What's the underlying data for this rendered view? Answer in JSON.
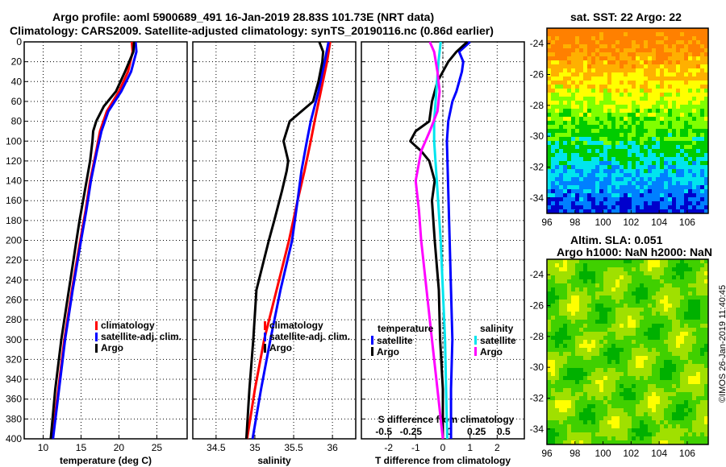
{
  "titles": {
    "line1": "Argo profile: aoml 5900689_491 16-Jan-2019 28.83S 101.73E (NRT data)",
    "line2": "Climatology: CARS2009. Satellite-adjusted climatology: synTS_20190116.nc (0.86d earlier)",
    "map1": "sat. SST: 22 Argo: 22",
    "map2_a": "Altim. SLA: 0.051",
    "map2_b": "Argo h1000: NaN h2000: NaN"
  },
  "stamp": "©IMOS 26-Jan-2019 11:40:45",
  "colors": {
    "climatology": "#ff0000",
    "satellite": "#0000ff",
    "argo": "#000000",
    "salinity_sat": "#00e5ee",
    "salinity_argo": "#ff00ff"
  },
  "chart_data": [
    {
      "type": "line",
      "name": "temperature",
      "xlabel": "temperature (deg C)",
      "ylabel": "depth",
      "xlim": [
        7.5,
        29
      ],
      "ylim": [
        400,
        0
      ],
      "xticks": [
        10,
        15,
        20,
        25
      ],
      "yticks": [
        0,
        20,
        40,
        60,
        80,
        100,
        120,
        140,
        160,
        180,
        200,
        220,
        240,
        260,
        280,
        300,
        320,
        340,
        360,
        380,
        400
      ],
      "grid": true,
      "legend": [
        "climatology",
        "satellite-adj. clim.",
        "Argo"
      ],
      "series": [
        {
          "name": "climatology",
          "color": "#ff0000",
          "depth": [
            0,
            10,
            30,
            50,
            70,
            90,
            110,
            140,
            170,
            200,
            250,
            300,
            350,
            400
          ],
          "values": [
            21.7,
            21.8,
            21.2,
            20.0,
            18.4,
            17.5,
            17.0,
            16.2,
            15.6,
            14.9,
            13.8,
            12.8,
            12.0,
            11.2
          ]
        },
        {
          "name": "satellite-adj. clim.",
          "color": "#0000ff",
          "depth": [
            0,
            10,
            30,
            50,
            70,
            90,
            110,
            140,
            170,
            200,
            250,
            300,
            350,
            400
          ],
          "values": [
            22.2,
            22.3,
            21.6,
            20.3,
            18.6,
            17.7,
            17.1,
            16.3,
            15.7,
            15.0,
            13.9,
            12.9,
            12.1,
            11.3
          ]
        },
        {
          "name": "Argo",
          "color": "#000000",
          "depth": [
            0,
            10,
            30,
            50,
            65,
            80,
            90,
            100,
            120,
            150,
            180,
            200,
            250,
            300,
            350,
            400
          ],
          "values": [
            22.0,
            21.9,
            20.8,
            19.6,
            18.0,
            17.0,
            16.6,
            16.5,
            16.2,
            15.5,
            14.8,
            14.4,
            13.4,
            12.4,
            11.6,
            11.0
          ]
        }
      ]
    },
    {
      "type": "line",
      "name": "salinity",
      "xlabel": "salinity",
      "xlim": [
        34.2,
        36.3
      ],
      "ylim": [
        400,
        0
      ],
      "xticks": [
        34.5,
        35,
        35.5,
        36
      ],
      "grid": true,
      "legend": [
        "climatology",
        "satellite-adj. clim.",
        "Argo"
      ],
      "series": [
        {
          "name": "climatology",
          "color": "#ff0000",
          "depth": [
            0,
            20,
            50,
            80,
            100,
            130,
            160,
            200,
            250,
            300,
            350,
            400
          ],
          "values": [
            35.97,
            35.93,
            35.85,
            35.77,
            35.72,
            35.64,
            35.55,
            35.44,
            35.28,
            35.12,
            35.0,
            34.9
          ]
        },
        {
          "name": "satellite-adj. clim.",
          "color": "#0000ff",
          "depth": [
            0,
            20,
            50,
            80,
            100,
            130,
            160,
            200,
            250,
            300,
            350,
            400
          ],
          "values": [
            35.95,
            35.9,
            35.82,
            35.72,
            35.67,
            35.6,
            35.55,
            35.48,
            35.33,
            35.2,
            35.08,
            34.97
          ]
        },
        {
          "name": "Argo",
          "color": "#000000",
          "depth": [
            0,
            10,
            20,
            40,
            60,
            80,
            100,
            120,
            130,
            150,
            180,
            200,
            250,
            300,
            350,
            400
          ],
          "values": [
            35.83,
            35.88,
            35.87,
            35.82,
            35.75,
            35.45,
            35.37,
            35.43,
            35.41,
            35.35,
            35.25,
            35.18,
            35.02,
            34.98,
            34.93,
            34.89
          ]
        }
      ]
    },
    {
      "type": "line",
      "name": "difference",
      "xlabel": "T difference from climatology",
      "xlabel2": "S difference from climatology",
      "xlim": [
        -3,
        3
      ],
      "ylim": [
        400,
        0
      ],
      "xticks": [
        -2,
        -1,
        0,
        1,
        2
      ],
      "xticks2": [
        -0.5,
        -0.25,
        0,
        0.25,
        0.5
      ],
      "xticklabels2": [
        "-0.5",
        "-0.25",
        "0",
        "0.25",
        "0.5"
      ],
      "grid": true,
      "legend_temperature": {
        "title": "temperature",
        "items": [
          "satellite",
          "Argo"
        ]
      },
      "legend_salinity": {
        "title": "salinity",
        "items": [
          "satellite",
          "Argo"
        ]
      },
      "series": [
        {
          "name": "temperature satellite",
          "color": "#0000ff",
          "depth": [
            0,
            10,
            20,
            30,
            40,
            50,
            60,
            80,
            100,
            150,
            200,
            250,
            300,
            350,
            400
          ],
          "values": [
            1.0,
            0.6,
            0.75,
            0.7,
            0.6,
            0.5,
            0.35,
            0.2,
            0.15,
            0.2,
            0.25,
            0.3,
            0.35,
            0.3,
            0.3
          ]
        },
        {
          "name": "temperature Argo",
          "color": "#000000",
          "depth": [
            0,
            10,
            20,
            40,
            60,
            80,
            90,
            100,
            110,
            120,
            140,
            160,
            200,
            250,
            300,
            350,
            400
          ],
          "values": [
            0.9,
            0.5,
            0.2,
            -0.2,
            -0.4,
            -0.5,
            -1.0,
            -1.2,
            -0.8,
            -0.5,
            -0.3,
            -0.4,
            -0.3,
            -0.15,
            -0.1,
            0.0,
            0.0
          ]
        },
        {
          "name": "salinity satellite",
          "color": "#00e5ee",
          "depth": [
            0,
            20,
            50,
            80,
            100,
            150,
            200,
            250,
            300,
            350,
            400
          ],
          "values": [
            -0.02,
            -0.04,
            -0.06,
            -0.08,
            -0.08,
            -0.05,
            -0.02,
            0.0,
            0.02,
            0.03,
            0.04
          ]
        },
        {
          "name": "salinity Argo",
          "color": "#ff00ff",
          "depth": [
            0,
            10,
            30,
            50,
            70,
            90,
            110,
            140,
            170,
            200,
            250,
            300,
            350,
            400
          ],
          "values": [
            -0.12,
            -0.08,
            -0.05,
            -0.03,
            -0.05,
            -0.12,
            -0.2,
            -0.25,
            -0.22,
            -0.2,
            -0.15,
            -0.1,
            -0.05,
            0.0
          ]
        }
      ]
    },
    {
      "type": "heatmap",
      "name": "sst-map",
      "xlim": [
        96,
        107.5
      ],
      "ylim": [
        -35,
        -23
      ],
      "xticks": [
        96,
        98,
        100,
        102,
        104,
        106
      ],
      "yticks": [
        -24,
        -26,
        -28,
        -30,
        -32,
        -34
      ],
      "colormap": [
        "#ff8000",
        "#ffb000",
        "#ffff00",
        "#80ff00",
        "#00cc00",
        "#00e5ee",
        "#0080ff",
        "#0000cc"
      ]
    },
    {
      "type": "heatmap",
      "name": "sla-map",
      "xlim": [
        96,
        107.5
      ],
      "ylim": [
        -35,
        -23
      ],
      "xticks": [
        96,
        98,
        100,
        102,
        104,
        106
      ],
      "yticks": [
        -24,
        -26,
        -28,
        -30,
        -32,
        -34
      ],
      "colormap": [
        "#00b000",
        "#40d000",
        "#a0e000",
        "#ffff00",
        "#ffb000",
        "#ff8000"
      ]
    }
  ]
}
